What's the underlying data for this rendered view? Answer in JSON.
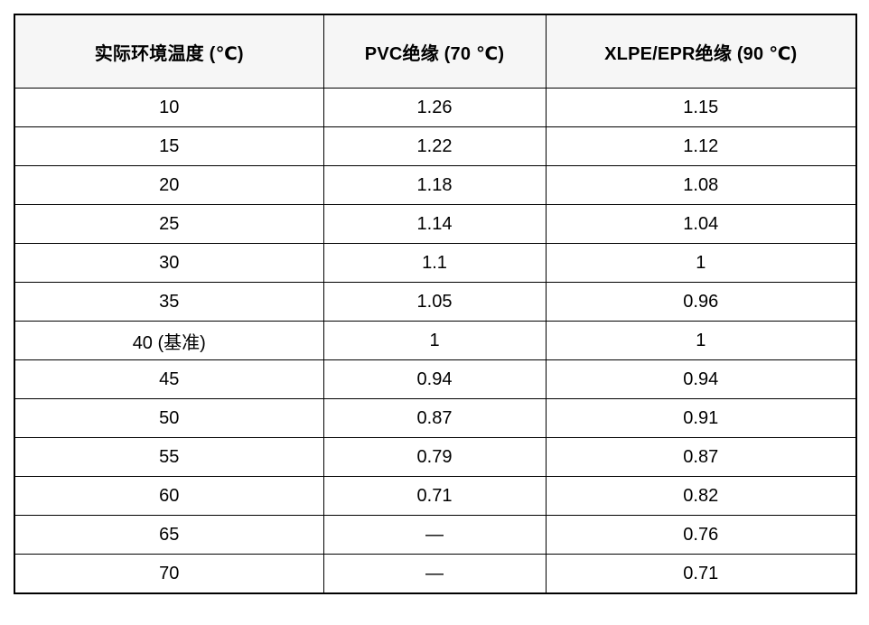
{
  "chart_data": {
    "type": "table",
    "columns": [
      "实际环境温度 (℃)",
      "PVC绝缘 (70 ℃)",
      "XLPE/EPR绝缘 (90 ℃)"
    ],
    "rows": [
      [
        "10",
        "1.26",
        "1.15"
      ],
      [
        "15",
        "1.22",
        "1.12"
      ],
      [
        "20",
        "1.18",
        "1.08"
      ],
      [
        "25",
        "1.14",
        "1.04"
      ],
      [
        "30",
        "1.1",
        "1"
      ],
      [
        "35",
        "1.05",
        "0.96"
      ],
      [
        "40 (基准)",
        "1",
        "1"
      ],
      [
        "45",
        "0.94",
        "0.94"
      ],
      [
        "50",
        "0.87",
        "0.91"
      ],
      [
        "55",
        "0.79",
        "0.87"
      ],
      [
        "60",
        "0.71",
        "0.82"
      ],
      [
        "65",
        "—",
        "0.76"
      ],
      [
        "70",
        "—",
        "0.71"
      ]
    ],
    "series": [
      {
        "name": "PVC绝缘 (70 ℃)",
        "x": [
          10,
          15,
          20,
          25,
          30,
          35,
          40,
          45,
          50,
          55,
          60
        ],
        "values": [
          1.26,
          1.22,
          1.18,
          1.14,
          1.1,
          1.05,
          1,
          0.94,
          0.87,
          0.79,
          0.71
        ]
      },
      {
        "name": "XLPE/EPR绝缘 (90 ℃)",
        "x": [
          10,
          15,
          20,
          25,
          30,
          35,
          40,
          45,
          50,
          55,
          60,
          65,
          70
        ],
        "values": [
          1.15,
          1.12,
          1.08,
          1.04,
          1,
          0.96,
          1,
          0.94,
          0.91,
          0.87,
          0.82,
          0.76,
          0.71
        ]
      }
    ],
    "missing_value_symbol": "—",
    "baseline_row_label": "40 (基准)"
  },
  "colors": {
    "page_bg": "#ffffff",
    "header_bg": "#f6f6f6",
    "border": "#000000",
    "text": "#000000"
  }
}
